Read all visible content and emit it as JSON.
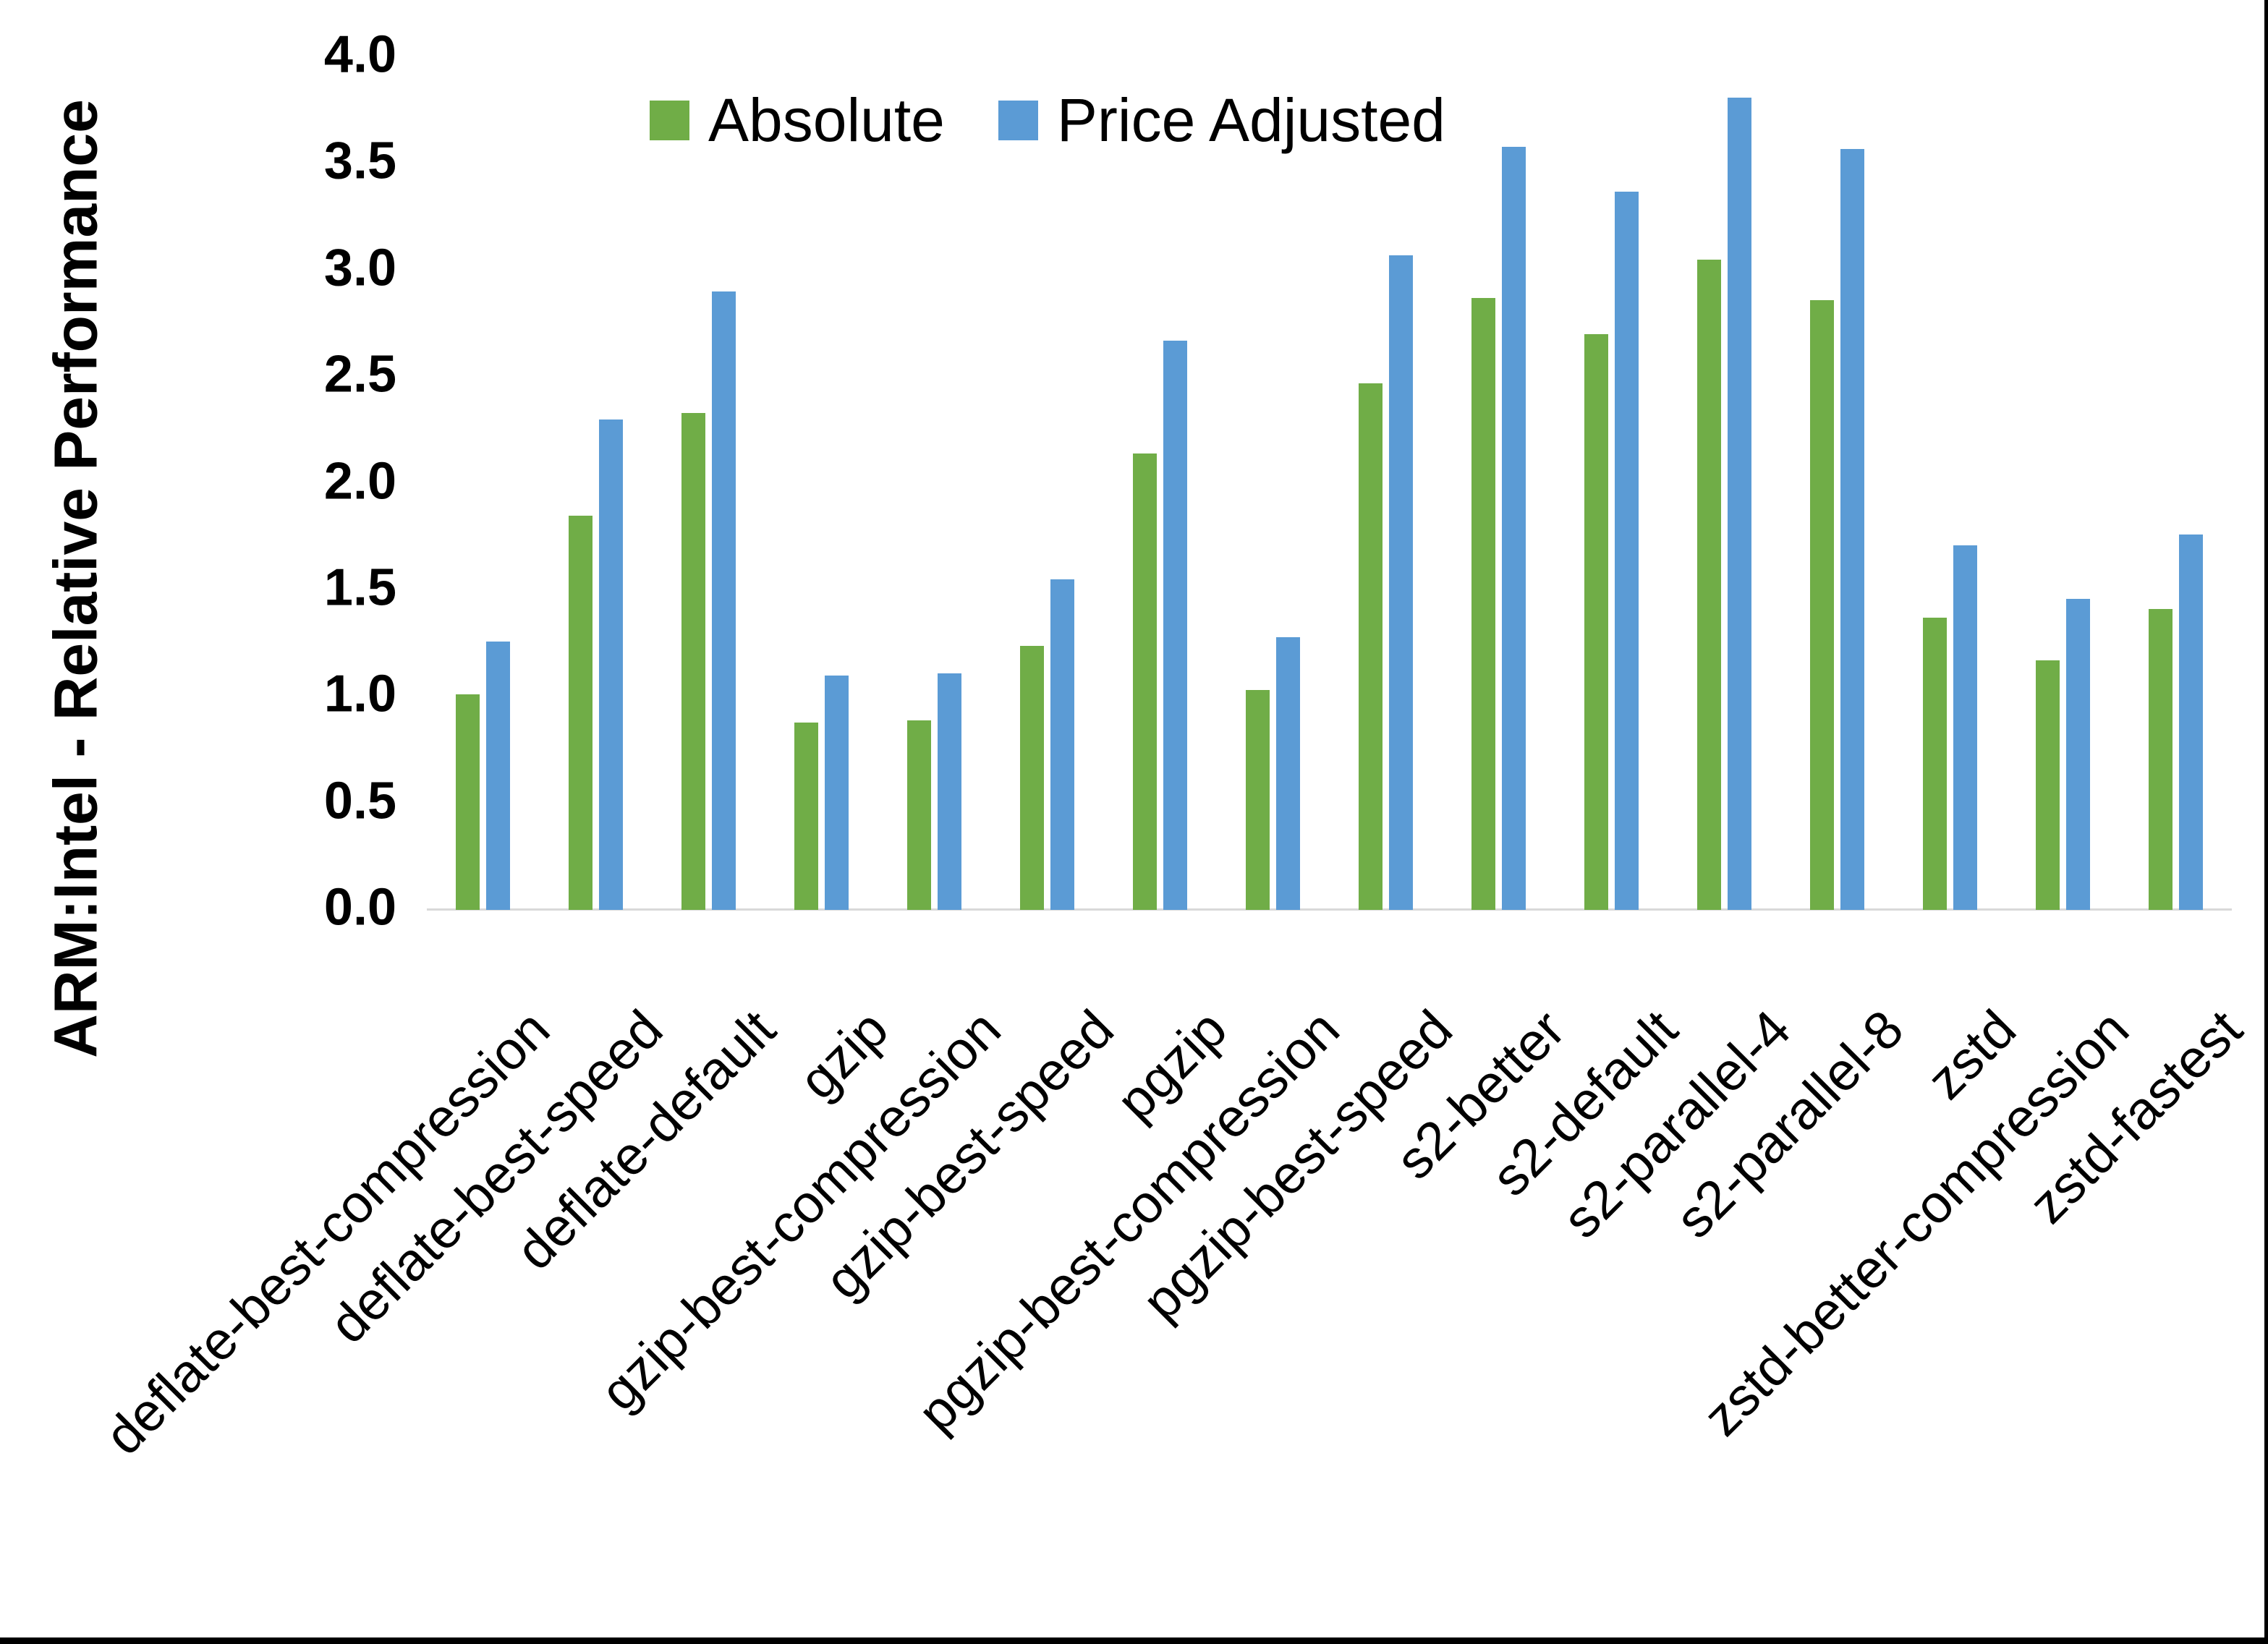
{
  "chart": {
    "y_axis_title": "ARM:Intel - Relative Performance",
    "y_tick_labels": [
      "0.0",
      "0.5",
      "1.0",
      "1.5",
      "2.0",
      "2.5",
      "3.0",
      "3.5",
      "4.0"
    ]
  },
  "chart_data": {
    "type": "bar",
    "title": "",
    "xlabel": "",
    "ylabel": "ARM:Intel - Relative Performance",
    "ylim": [
      0.0,
      4.0
    ],
    "ytick_step": 0.5,
    "grid": false,
    "legend_position": "top-center",
    "x_label_rotation_deg": 45,
    "categories": [
      "deflate-best-compression",
      "deflate-best-speed",
      "deflate-default",
      "gzip",
      "gzip-best-compression",
      "gzip-best-speed",
      "pgzip",
      "pgzip-best-compression",
      "pgzip-best-speed",
      "s2-better",
      "s2-default",
      "s2-parallel-4",
      "s2-parallel-8",
      "zstd",
      "zstd-better-compression",
      "zstd-fastest"
    ],
    "series": [
      {
        "name": "Absolute",
        "color": "#70AD47",
        "values": [
          1.01,
          1.85,
          2.33,
          0.88,
          0.89,
          1.24,
          2.14,
          1.03,
          2.47,
          2.87,
          2.7,
          3.05,
          2.86,
          1.37,
          1.17,
          1.41
        ]
      },
      {
        "name": "Price Adjusted",
        "color": "#5B9BD5",
        "values": [
          1.26,
          2.3,
          2.9,
          1.1,
          1.11,
          1.55,
          2.67,
          1.28,
          3.07,
          3.58,
          3.37,
          3.81,
          3.57,
          1.71,
          1.46,
          1.76
        ]
      }
    ],
    "colors": {
      "axis_line": "#D9D9D9",
      "text": "#000000",
      "frame_border": "#000000"
    }
  }
}
